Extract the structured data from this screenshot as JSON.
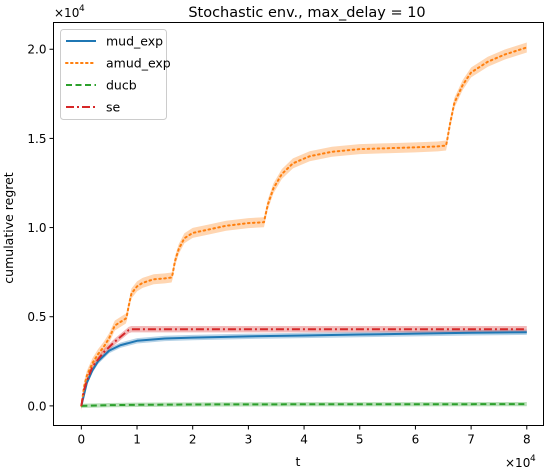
{
  "chart_data": {
    "type": "line",
    "title": "Stochastic env., max_delay = 10",
    "xlabel": "t",
    "ylabel": "cumulative regret",
    "x_multiplier": "×10",
    "y_multiplier": "×10",
    "multiplier_exponent": "4",
    "xlim": [
      -0.5,
      8.3
    ],
    "ylim": [
      -0.11,
      2.15
    ],
    "x_ticks": [
      0,
      1,
      2,
      3,
      4,
      5,
      6,
      7,
      8
    ],
    "x_tick_labels": [
      "0",
      "1",
      "2",
      "3",
      "4",
      "5",
      "6",
      "7",
      "8"
    ],
    "y_ticks": [
      0.0,
      0.5,
      1.0,
      1.5,
      2.0
    ],
    "y_tick_labels": [
      "0.0",
      "0.5",
      "1.0",
      "1.5",
      "2.0"
    ],
    "grid": false,
    "legend_position": "top-left",
    "units_note": "x and y values in units of 10^4",
    "series": [
      {
        "name": "mud_exp",
        "color": "#1f77b4",
        "style": "solid",
        "band_width": 0.015,
        "x": [
          0,
          0.1,
          0.2,
          0.3,
          0.5,
          0.7,
          1.0,
          1.5,
          2.0,
          3.0,
          4.0,
          5.0,
          6.0,
          7.0,
          8.0
        ],
        "y": [
          0,
          0.13,
          0.2,
          0.25,
          0.31,
          0.34,
          0.365,
          0.378,
          0.383,
          0.39,
          0.395,
          0.4,
          0.405,
          0.41,
          0.413
        ]
      },
      {
        "name": "amud_exp",
        "color": "#ff7f0e",
        "style": "dotted",
        "band_width": 0.028,
        "x": [
          0,
          0.05,
          0.1,
          0.2,
          0.3,
          0.4,
          0.5,
          0.6,
          0.75,
          0.8,
          0.82,
          0.85,
          0.9,
          1.0,
          1.1,
          1.3,
          1.5,
          1.62,
          1.64,
          1.68,
          1.75,
          1.85,
          2.0,
          2.3,
          2.6,
          3.0,
          3.28,
          3.3,
          3.35,
          3.45,
          3.6,
          3.8,
          4.1,
          4.5,
          5.0,
          5.5,
          6.0,
          6.4,
          6.55,
          6.57,
          6.62,
          6.7,
          6.85,
          7.0,
          7.3,
          7.6,
          8.0
        ],
        "y": [
          0,
          0.11,
          0.17,
          0.24,
          0.29,
          0.33,
          0.38,
          0.45,
          0.48,
          0.49,
          0.51,
          0.56,
          0.63,
          0.67,
          0.69,
          0.71,
          0.715,
          0.72,
          0.74,
          0.81,
          0.88,
          0.94,
          0.97,
          0.99,
          1.01,
          1.025,
          1.03,
          1.06,
          1.13,
          1.22,
          1.3,
          1.36,
          1.4,
          1.425,
          1.44,
          1.445,
          1.45,
          1.455,
          1.46,
          1.49,
          1.58,
          1.7,
          1.8,
          1.87,
          1.93,
          1.97,
          2.01
        ]
      },
      {
        "name": "ducb",
        "color": "#2ca02c",
        "style": "dashed",
        "band_width": 0.012,
        "x": [
          0,
          0.5,
          1.0,
          2.0,
          4.0,
          6.0,
          8.0
        ],
        "y": [
          0,
          0.004,
          0.006,
          0.008,
          0.009,
          0.009,
          0.01
        ]
      },
      {
        "name": "se",
        "color": "#d62728",
        "style": "dashdot",
        "band_width": 0.018,
        "x": [
          0,
          0.05,
          0.1,
          0.2,
          0.4,
          0.6,
          0.85,
          0.9,
          8.0
        ],
        "y": [
          0,
          0.09,
          0.14,
          0.22,
          0.3,
          0.36,
          0.425,
          0.43,
          0.43
        ]
      }
    ]
  }
}
